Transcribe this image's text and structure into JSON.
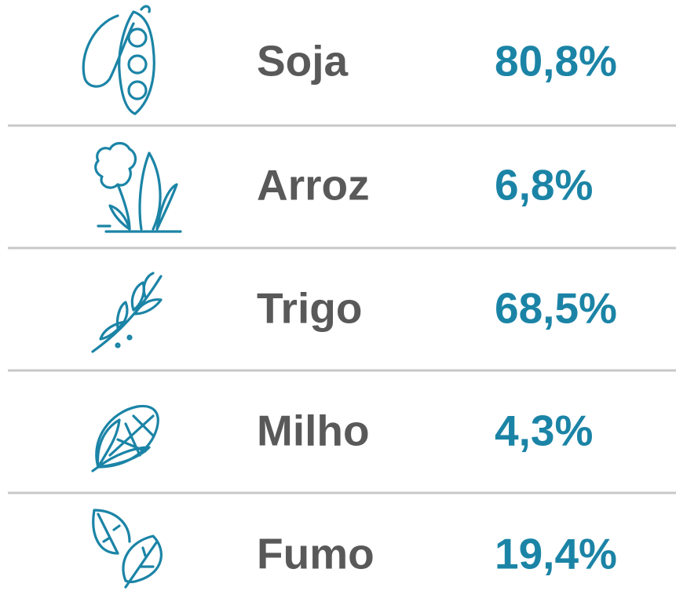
{
  "rows": [
    {
      "label": "Soja",
      "value": "80,8%"
    },
    {
      "label": "Arroz",
      "value": "6,8%"
    },
    {
      "label": "Trigo",
      "value": "68,5%"
    },
    {
      "label": "Milho",
      "value": "4,3%"
    },
    {
      "label": "Fumo",
      "value": "19,4%"
    }
  ]
}
